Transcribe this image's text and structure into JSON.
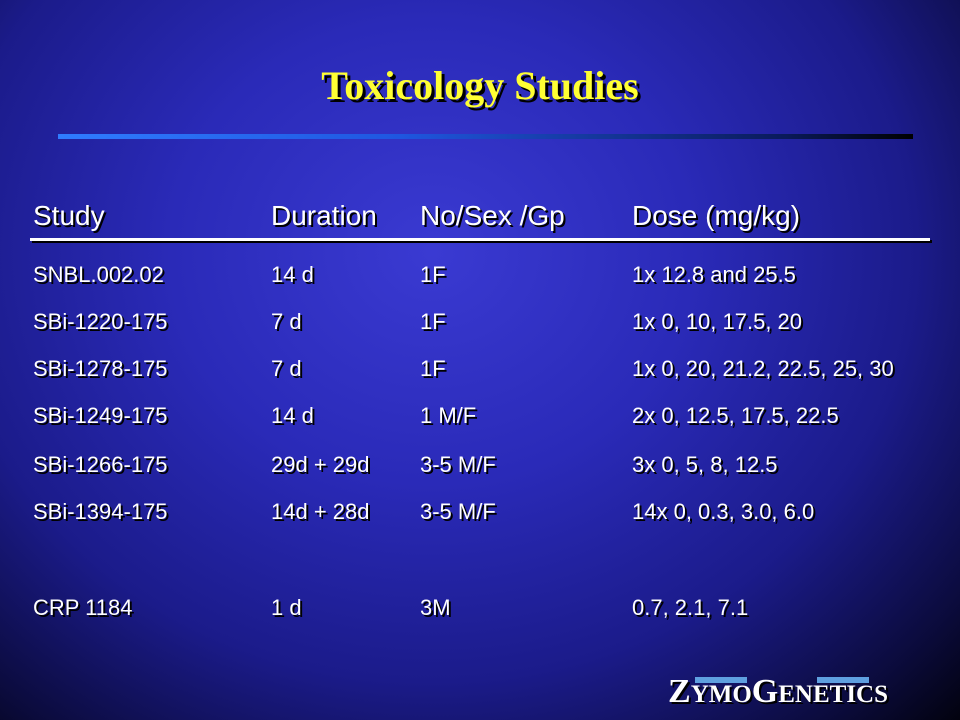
{
  "title": "Toxicology Studies",
  "table": {
    "headers": [
      "Study",
      "Duration",
      "No/Sex /Gp",
      "Dose (mg/kg)"
    ],
    "rows": [
      [
        "SNBL.002.02",
        "14 d",
        "1F",
        "1x 12.8 and 25.5"
      ],
      [
        "SBi-1220-175",
        "7 d",
        "1F",
        "1x 0, 10, 17.5, 20"
      ],
      [
        "SBi-1278-175",
        "7 d",
        "1F",
        "1x 0, 20, 21.2, 22.5, 25, 30"
      ],
      [
        "SBi-1249-175",
        "14 d",
        "1 M/F",
        "2x 0, 12.5, 17.5, 22.5"
      ],
      [
        "SBi-1266-175",
        "29d + 29d",
        "3-5 M/F",
        "3x 0, 5, 8, 12.5"
      ],
      [
        "SBi-1394-175",
        "14d + 28d",
        "3-5 M/F",
        "14x 0, 0.3, 3.0, 6.0"
      ],
      [
        "CRP 1184",
        "1 d",
        "3M",
        "0.7, 2.1, 7.1"
      ]
    ]
  },
  "logo": {
    "text": "ZYMOGENETICS",
    "parts": [
      "Z",
      "YMO",
      "G",
      "ENETICS"
    ]
  },
  "colors": {
    "title": "#ffff33",
    "text": "#ffffff",
    "rule_blue": "#2f7cff",
    "logo_bar": "#5fa0e0"
  }
}
